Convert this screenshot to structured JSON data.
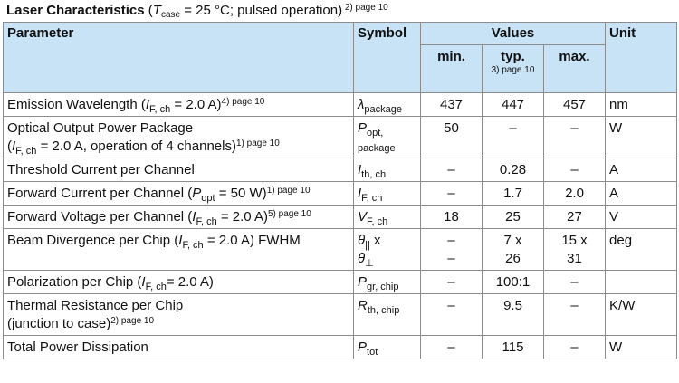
{
  "title": {
    "bold": "Laser Characteristics",
    "cond_open": " (",
    "t_sym": "T",
    "t_sub": "case",
    "cond_rest": " = 25 °C; pulsed operation)",
    "note": " 2) page 10"
  },
  "headers": {
    "parameter": "Parameter",
    "symbol": "Symbol",
    "values": "Values",
    "unit": "Unit",
    "min": "min.",
    "typ": "typ.",
    "typ_note": "3) page 10",
    "max": "max."
  },
  "rows": [
    {
      "p1": "Emission Wavelength (",
      "p1_sym": "I",
      "p1_sub": "F, ch",
      "p1_rest": " = 2.0 A)",
      "p1_note": "4) page 10",
      "sym": "λ",
      "sym_sub": "package",
      "min": "437",
      "typ": "447",
      "max": "457",
      "unit": "nm"
    },
    {
      "p1": "Optical Output Power Package",
      "p2": "(",
      "p2_sym": "I",
      "p2_sub": "F, ch",
      "p2_rest": " = 2.0 A, operation of 4 channels)",
      "p2_note": "1) page 10",
      "sym": "P",
      "sym_sub": "opt,",
      "sym_line2": "package",
      "min": "50",
      "typ": "–",
      "max": "–",
      "unit": "W"
    },
    {
      "p1": "Threshold Current per Channel",
      "sym": "I",
      "sym_sub": "th, ch",
      "min": "–",
      "typ": "0.28",
      "max": "–",
      "unit": "A"
    },
    {
      "p1": "Forward Current per Channel (",
      "p1_sym": "P",
      "p1_sub": "opt",
      "p1_rest": " = 50 W)",
      "p1_note": "1) page 10",
      "sym": "I",
      "sym_sub": "F, ch",
      "min": "–",
      "typ": "1.7",
      "max": "2.0",
      "unit": "A"
    },
    {
      "p1": "Forward Voltage per Channel (",
      "p1_sym": "I",
      "p1_sub": "F, ch",
      "p1_rest": " = 2.0 A)",
      "p1_note": "5) page 10",
      "sym": "V",
      "sym_sub": "F, ch",
      "min": "18",
      "typ": "25",
      "max": "27",
      "unit": "V"
    },
    {
      "p1": "Beam Divergence per Chip (",
      "p1_sym": "I",
      "p1_sub": "F, ch",
      "p1_rest": " = 2.0 A) FWHM",
      "sym": "θ",
      "sym_sub": "||",
      "sym_after": " x",
      "sym2": "θ",
      "sym2_sub": "⊥",
      "min": "–",
      "min2": "–",
      "typ": "7 x",
      "typ2": "26",
      "max": "15 x",
      "max2": "31",
      "unit": "deg"
    },
    {
      "p1": "Polarization per Chip (",
      "p1_sym": "I",
      "p1_sub": "F, ch",
      "p1_rest": "= 2.0 A)",
      "sym": "P",
      "sym_sub": "gr, chip",
      "min": "–",
      "typ": "100:1",
      "max": "–",
      "unit": ""
    },
    {
      "p1": "Thermal Resistance per Chip",
      "p2": "(junction to case)",
      "p2_note": "2) page 10",
      "sym": "R",
      "sym_sub": "th, chip",
      "min": "–",
      "typ": "9.5",
      "max": "–",
      "unit": "K/W"
    },
    {
      "p1": "Total Power Dissipation",
      "sym": "P",
      "sym_sub": "tot",
      "min": "–",
      "typ": "115",
      "max": "–",
      "unit": "W"
    }
  ]
}
